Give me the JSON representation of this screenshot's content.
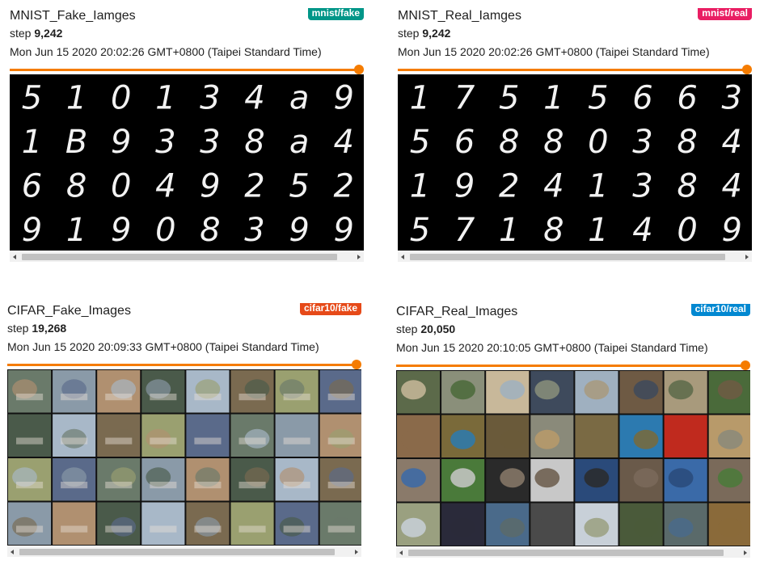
{
  "cards": [
    {
      "title": "MNIST_Fake_Iamges",
      "tag": "mnist/fake",
      "tag_color": "#009688",
      "step_label": "step",
      "step": "9,242",
      "time": "Mon Jun 15 2020 20:02:26 GMT+0800 (Taipei Standard Time)",
      "slider_fraction": 1.0,
      "digits": [
        [
          "5",
          "1",
          "0",
          "1",
          "3",
          "4",
          "a",
          "9"
        ],
        [
          "1",
          "B",
          "9",
          "3",
          "3",
          "8",
          "a",
          "4"
        ],
        [
          "6",
          "8",
          "0",
          "4",
          "9",
          "2",
          "5",
          "2"
        ],
        [
          "9",
          "1",
          "9",
          "0",
          "8",
          "3",
          "9",
          "9"
        ]
      ]
    },
    {
      "title": "MNIST_Real_Iamges",
      "tag": "mnist/real",
      "tag_color": "#e91e63",
      "step_label": "step",
      "step": "9,242",
      "time": "Mon Jun 15 2020 20:02:26 GMT+0800 (Taipei Standard Time)",
      "slider_fraction": 1.0,
      "digits": [
        [
          "1",
          "7",
          "5",
          "1",
          "5",
          "6",
          "6",
          "3"
        ],
        [
          "5",
          "6",
          "8",
          "8",
          "0",
          "3",
          "8",
          "4"
        ],
        [
          "1",
          "9",
          "2",
          "4",
          "1",
          "3",
          "8",
          "4"
        ],
        [
          "5",
          "7",
          "1",
          "8",
          "1",
          "4",
          "0",
          "9"
        ]
      ]
    },
    {
      "title": "CIFAR_Fake_Images",
      "tag": "cifar10/fake",
      "tag_color": "#e64a19",
      "step_label": "step",
      "step": "19,268",
      "time": "Mon Jun 15 2020 20:09:33 GMT+0800 (Taipei Standard Time)",
      "slider_fraction": 1.0
    },
    {
      "title": "CIFAR_Real_Images",
      "tag": "cifar10/real",
      "tag_color": "#0288d1",
      "step_label": "step",
      "step": "20,050",
      "time": "Mon Jun 15 2020 20:10:05 GMT+0800 (Taipei Standard Time)",
      "slider_fraction": 1.0
    }
  ]
}
